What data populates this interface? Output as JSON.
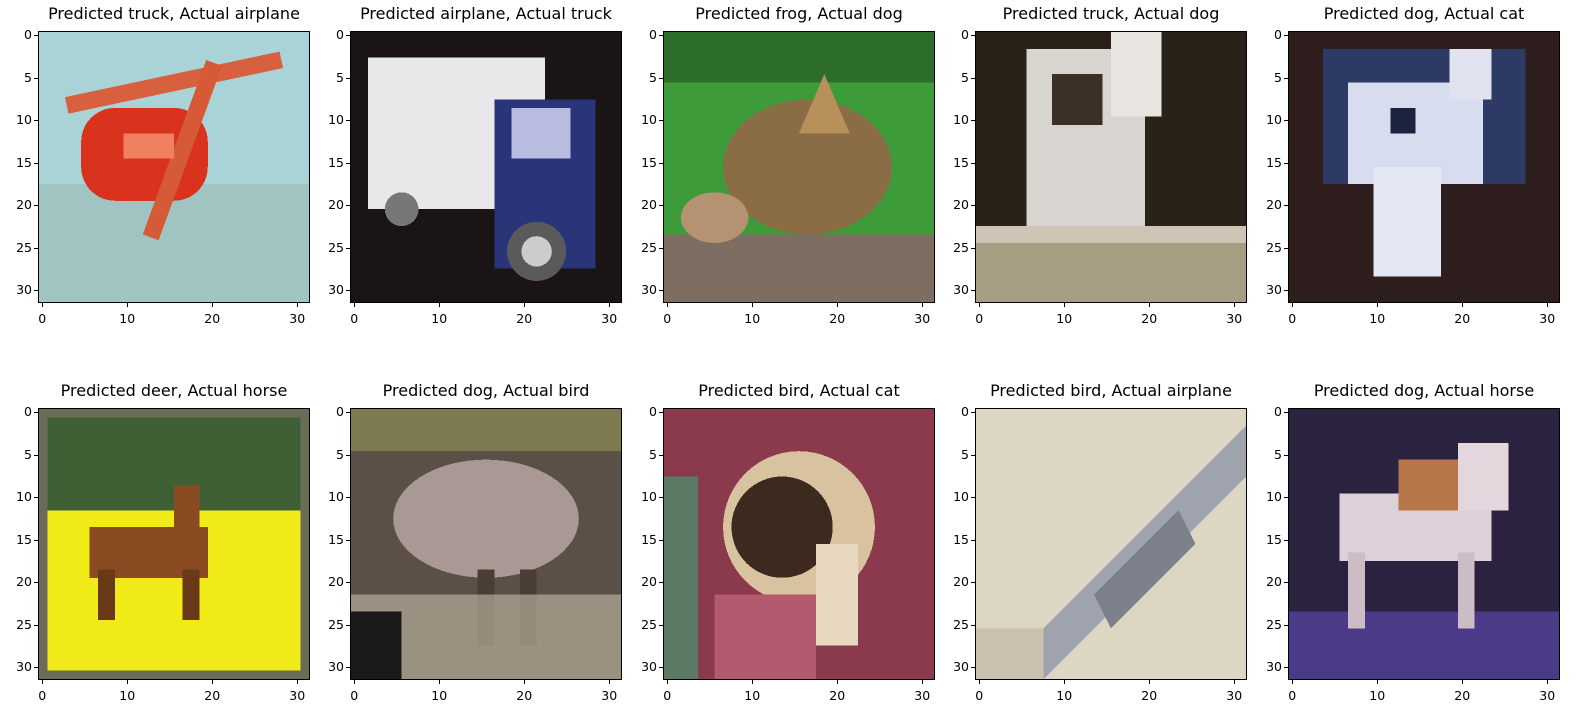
{
  "figure": {
    "xticks": [
      "0",
      "10",
      "20",
      "30"
    ],
    "yticks": [
      "0",
      "5",
      "10",
      "15",
      "20",
      "25",
      "30"
    ],
    "panels": [
      {
        "title": "Predicted truck, Actual airplane",
        "scene": "airplane"
      },
      {
        "title": "Predicted airplane, Actual truck",
        "scene": "truck"
      },
      {
        "title": "Predicted frog, Actual dog",
        "scene": "frog-dog"
      },
      {
        "title": "Predicted truck, Actual dog",
        "scene": "dog-bw"
      },
      {
        "title": "Predicted dog, Actual cat",
        "scene": "cat-dark"
      },
      {
        "title": "Predicted deer, Actual horse",
        "scene": "horse-yellow"
      },
      {
        "title": "Predicted dog, Actual bird",
        "scene": "bird-emu"
      },
      {
        "title": "Predicted bird, Actual cat",
        "scene": "cat-red"
      },
      {
        "title": "Predicted bird, Actual airplane",
        "scene": "airplane-grey"
      },
      {
        "title": "Predicted dog, Actual horse",
        "scene": "horse-purple"
      }
    ]
  }
}
